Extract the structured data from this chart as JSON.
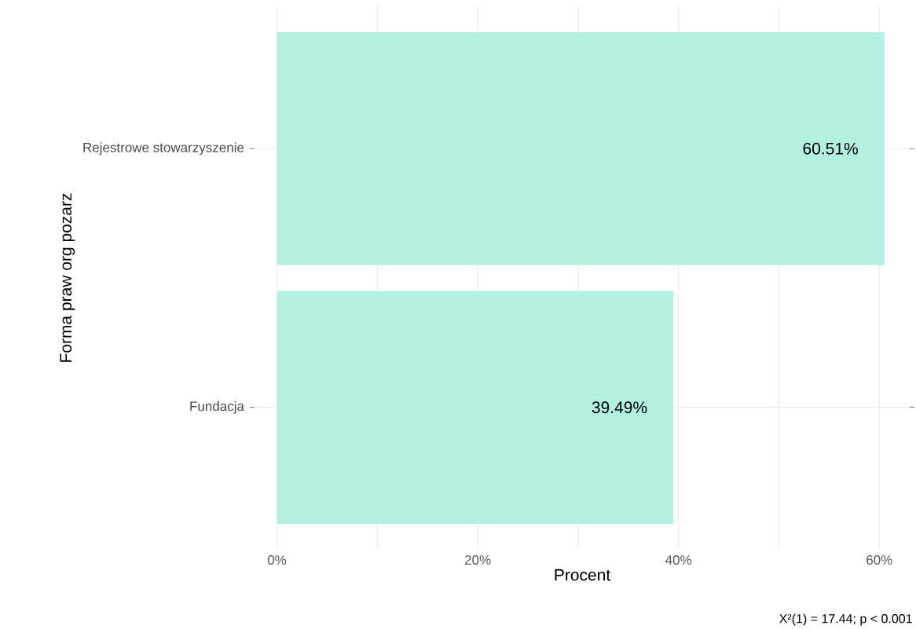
{
  "chart_data": {
    "type": "bar",
    "orientation": "horizontal",
    "xlabel": "Procent",
    "ylabel": "Forma praw org pozarz",
    "categories": [
      "Rejestrowe stowarzyszenie",
      "Fundacja"
    ],
    "values": [
      60.51,
      39.49
    ],
    "value_labels": [
      "60.51%",
      "39.49%"
    ],
    "color": "#b3f0e4",
    "xlim": [
      -2.7,
      63.5
    ],
    "xticks": [
      {
        "value": 0,
        "label": "0%"
      },
      {
        "value": 10,
        "label": null
      },
      {
        "value": 20,
        "label": "20%"
      },
      {
        "value": 30,
        "label": null
      },
      {
        "value": 40,
        "label": "40%"
      },
      {
        "value": 50,
        "label": null
      },
      {
        "value": 60,
        "label": "60%"
      }
    ],
    "grid": true,
    "annotations": [
      "X²(1) = 17.44; p < 0.001"
    ]
  }
}
